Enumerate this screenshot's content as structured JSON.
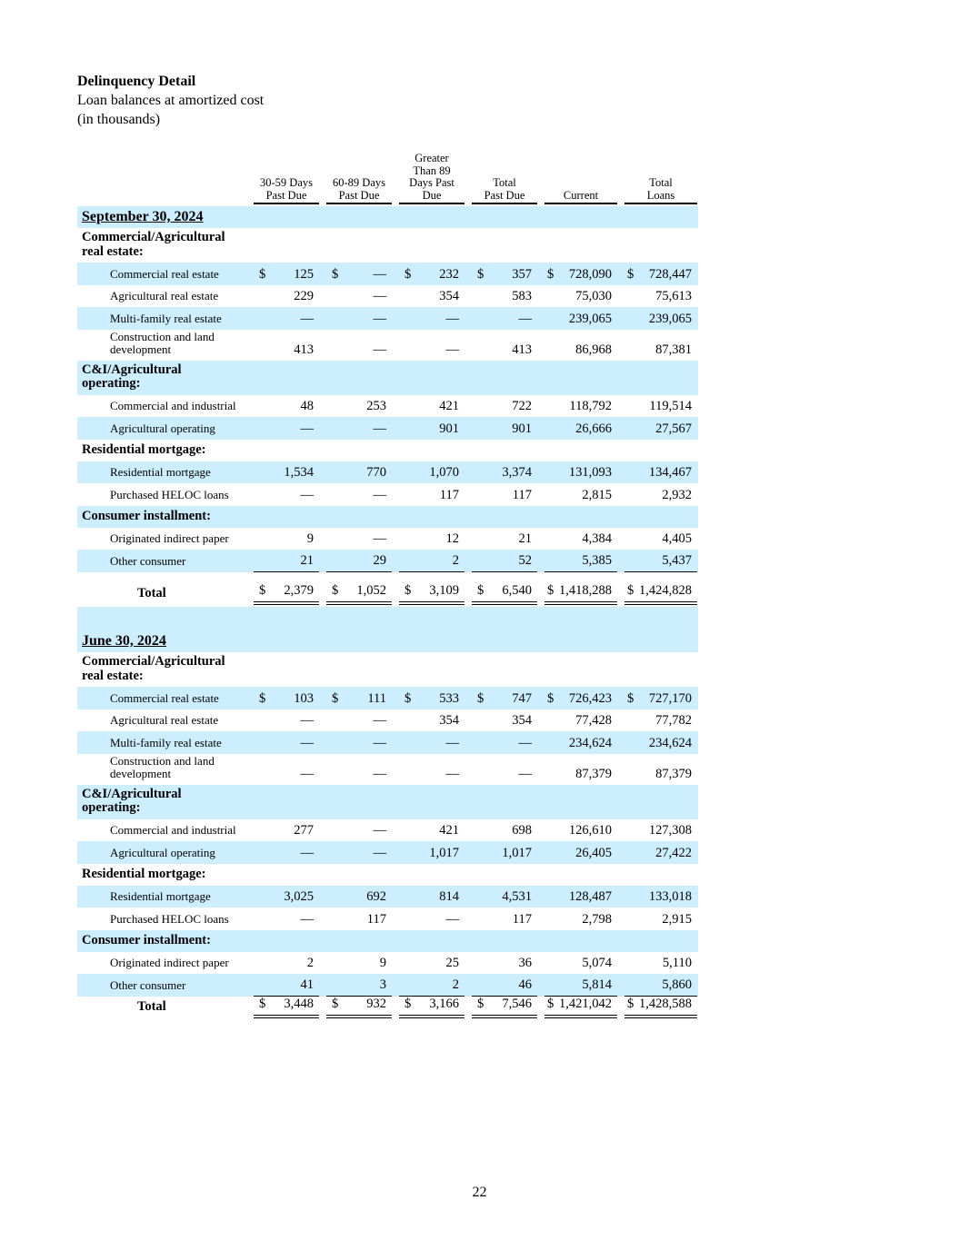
{
  "title": {
    "heading": "Delinquency Detail",
    "subtitle": "Loan balances at amortized cost",
    "units": "(in thousands)"
  },
  "columns": [
    "30-59 Days\nPast Due",
    "60-89 Days\nPast Due",
    "Greater\nThan 89\nDays Past\nDue",
    "Total\nPast Due",
    "Current",
    "Total\nLoans"
  ],
  "sections": [
    {
      "date": "September 30, 2024",
      "rows": [
        {
          "type": "group",
          "label": "Commercial/Agricultural\nreal estate:"
        },
        {
          "type": "item",
          "label": "Commercial real estate",
          "dollar": true,
          "values": [
            "125",
            "—",
            "232",
            "357",
            "728,090",
            "728,447"
          ]
        },
        {
          "type": "item",
          "label": "Agricultural real estate",
          "values": [
            "229",
            "—",
            "354",
            "583",
            "75,030",
            "75,613"
          ]
        },
        {
          "type": "item",
          "label": "Multi-family real estate",
          "values": [
            "—",
            "—",
            "—",
            "—",
            "239,065",
            "239,065"
          ]
        },
        {
          "type": "item",
          "label": "Construction and land\ndevelopment",
          "values": [
            "413",
            "—",
            "—",
            "413",
            "86,968",
            "87,381"
          ]
        },
        {
          "type": "group",
          "label": "C&I/Agricultural\noperating:"
        },
        {
          "type": "item",
          "label": "Commercial and industrial",
          "values": [
            "48",
            "253",
            "421",
            "722",
            "118,792",
            "119,514"
          ]
        },
        {
          "type": "item",
          "label": "Agricultural operating",
          "values": [
            "—",
            "—",
            "901",
            "901",
            "26,666",
            "27,567"
          ]
        },
        {
          "type": "group",
          "label": "Residential mortgage:"
        },
        {
          "type": "item",
          "label": "Residential mortgage",
          "values": [
            "1,534",
            "770",
            "1,070",
            "3,374",
            "131,093",
            "134,467"
          ]
        },
        {
          "type": "item",
          "label": "Purchased HELOC loans",
          "values": [
            "—",
            "—",
            "117",
            "117",
            "2,815",
            "2,932"
          ]
        },
        {
          "type": "group",
          "label": "Consumer installment:"
        },
        {
          "type": "item",
          "label": "Originated indirect paper",
          "values": [
            "9",
            "—",
            "12",
            "21",
            "4,384",
            "4,405"
          ]
        },
        {
          "type": "item",
          "label": "Other consumer",
          "last": true,
          "values": [
            "21",
            "29",
            "2",
            "52",
            "5,385",
            "5,437"
          ]
        },
        {
          "type": "total",
          "label": "Total",
          "gap": true,
          "values": [
            "2,379",
            "1,052",
            "3,109",
            "6,540",
            "1,418,288",
            "1,424,828"
          ]
        }
      ]
    },
    {
      "date": "June 30, 2024",
      "rows": [
        {
          "type": "group",
          "label": "Commercial/Agricultural\nreal estate:"
        },
        {
          "type": "item",
          "label": "Commercial real estate",
          "dollar": true,
          "values": [
            "103",
            "111",
            "533",
            "747",
            "726,423",
            "727,170"
          ]
        },
        {
          "type": "item",
          "label": "Agricultural real estate",
          "values": [
            "—",
            "—",
            "354",
            "354",
            "77,428",
            "77,782"
          ]
        },
        {
          "type": "item",
          "label": "Multi-family real estate",
          "values": [
            "—",
            "—",
            "—",
            "—",
            "234,624",
            "234,624"
          ]
        },
        {
          "type": "item",
          "label": "Construction and land\ndevelopment",
          "values": [
            "—",
            "—",
            "—",
            "—",
            "87,379",
            "87,379"
          ]
        },
        {
          "type": "group",
          "label": "C&I/Agricultural\noperating:"
        },
        {
          "type": "item",
          "label": "Commercial and industrial",
          "values": [
            "277",
            "—",
            "421",
            "698",
            "126,610",
            "127,308"
          ]
        },
        {
          "type": "item",
          "label": "Agricultural operating",
          "values": [
            "—",
            "—",
            "1,017",
            "1,017",
            "26,405",
            "27,422"
          ]
        },
        {
          "type": "group",
          "label": "Residential mortgage:"
        },
        {
          "type": "item",
          "label": "Residential mortgage",
          "values": [
            "3,025",
            "692",
            "814",
            "4,531",
            "128,487",
            "133,018"
          ]
        },
        {
          "type": "item",
          "label": "Purchased HELOC loans",
          "values": [
            "—",
            "117",
            "—",
            "117",
            "2,798",
            "2,915"
          ]
        },
        {
          "type": "group",
          "label": "Consumer installment:"
        },
        {
          "type": "item",
          "label": "Originated indirect paper",
          "values": [
            "2",
            "9",
            "25",
            "36",
            "5,074",
            "5,110"
          ]
        },
        {
          "type": "item",
          "label": "Other consumer",
          "last": true,
          "values": [
            "41",
            "3",
            "2",
            "46",
            "5,814",
            "5,860"
          ]
        },
        {
          "type": "total",
          "label": "Total",
          "values": [
            "3,448",
            "932",
            "3,166",
            "7,546",
            "1,421,042",
            "1,428,588"
          ]
        }
      ]
    }
  ],
  "currency_symbol": "$",
  "page_number": "22",
  "colors": {
    "band": "#cceeff"
  }
}
